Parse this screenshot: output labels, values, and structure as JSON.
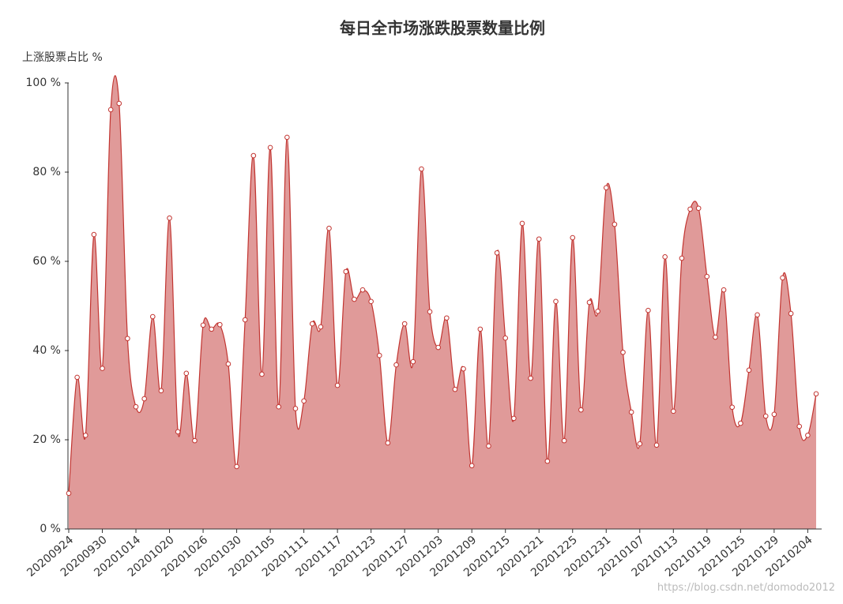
{
  "chart_data": {
    "type": "area",
    "title": "每日全市场涨跌股票数量比例",
    "y_axis_label": "上涨股票占比 %",
    "watermark": "https://blog.csdn.net/domodo2012",
    "categories": [
      "20200924",
      null,
      null,
      null,
      "20200930",
      null,
      null,
      null,
      "20201014",
      null,
      null,
      null,
      "20201020",
      null,
      null,
      null,
      "20201026",
      null,
      null,
      null,
      "20201030",
      null,
      null,
      null,
      "20201105",
      null,
      null,
      null,
      "20201111",
      null,
      null,
      null,
      "20201117",
      null,
      null,
      null,
      "20201123",
      null,
      null,
      null,
      "20201127",
      null,
      null,
      null,
      "20201203",
      null,
      null,
      null,
      "20201209",
      null,
      null,
      null,
      "20201215",
      null,
      null,
      null,
      "20201221",
      null,
      null,
      null,
      "20201225",
      null,
      null,
      null,
      "20201231",
      null,
      null,
      null,
      "20210107",
      null,
      null,
      null,
      "20210113",
      null,
      null,
      null,
      "20210119",
      null,
      null,
      null,
      "20210125",
      null,
      null,
      null,
      "20210129",
      null,
      null,
      null,
      "20210204",
      null
    ],
    "series": [
      {
        "color": "#c23531",
        "fill": "#e09a99",
        "values": [
          8,
          34,
          21,
          66,
          36,
          94,
          95.4,
          42.7,
          27.4,
          29.2,
          47.6,
          31,
          69.7,
          21.8,
          34.9,
          19.8,
          45.7,
          44.8,
          45.8,
          37,
          14,
          46.9,
          83.7,
          34.7,
          85.5,
          27.4,
          87.8,
          27,
          28.7,
          46,
          45.3,
          67.4,
          32.2,
          57.7,
          51.5,
          53.6,
          51,
          38.9,
          19.3,
          36.8,
          46,
          37.5,
          80.7,
          48.7,
          40.7,
          47.3,
          31.3,
          35.9,
          14.2,
          44.8,
          18.6,
          61.9,
          42.8,
          24.8,
          68.5,
          33.8,
          65,
          15.2,
          51,
          19.8,
          65.3,
          26.7,
          50.8,
          48.8,
          76.5,
          68.3,
          39.6,
          26.2,
          19.1,
          49,
          18.8,
          61,
          26.4,
          60.7,
          71.7,
          71.9,
          56.6,
          43,
          53.6,
          27.3,
          23.7,
          35.6,
          48,
          25.3,
          25.7,
          56.3,
          48.3,
          23,
          21,
          30.3
        ]
      }
    ],
    "ylim": [
      0,
      100
    ],
    "yticks": [
      {
        "value": 0,
        "label": "0 %"
      },
      {
        "value": 20,
        "label": "20 %"
      },
      {
        "value": 40,
        "label": "40 %"
      },
      {
        "value": 60,
        "label": "60 %"
      },
      {
        "value": 80,
        "label": "80 %"
      },
      {
        "value": 100,
        "label": "100 %"
      }
    ],
    "smooth": true
  }
}
